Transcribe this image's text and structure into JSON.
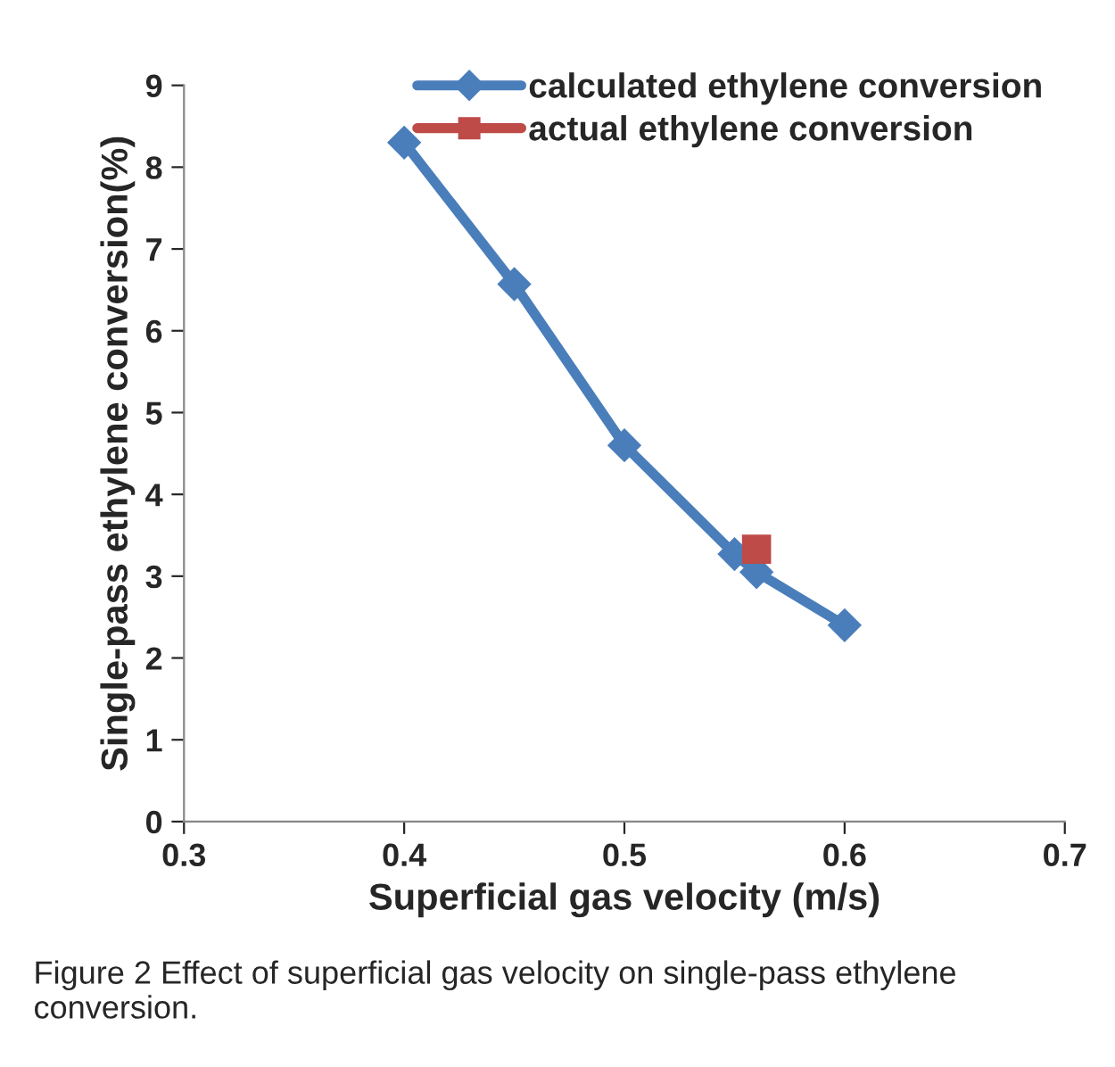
{
  "chart_data": {
    "type": "line",
    "xlabel": "Superficial gas velocity (m/s)",
    "ylabel": "Single-pass ethylene conversion(%)",
    "series": [
      {
        "name": "calculated ethylene conversion",
        "color": "#4a7ebb",
        "marker": "diamond",
        "x": [
          0.4,
          0.45,
          0.5,
          0.55,
          0.56,
          0.6
        ],
        "values": [
          8.3,
          6.57,
          4.6,
          3.27,
          3.05,
          2.4
        ]
      },
      {
        "name": "actual ethylene conversion",
        "color": "#be4b48",
        "marker": "square",
        "x": [
          0.56
        ],
        "values": [
          3.33
        ]
      }
    ],
    "xlim": [
      0.3,
      0.7
    ],
    "xticks": [
      0.3,
      0.4,
      0.5,
      0.6,
      0.7
    ],
    "ylim": [
      0,
      9
    ],
    "yticks": [
      0,
      1,
      2,
      3,
      4,
      5,
      6,
      7,
      8,
      9
    ],
    "grid": false,
    "legend": "top",
    "annotations": [
      "Figure 2 Effect of superficial gas velocity on single-pass ethylene conversion."
    ]
  }
}
